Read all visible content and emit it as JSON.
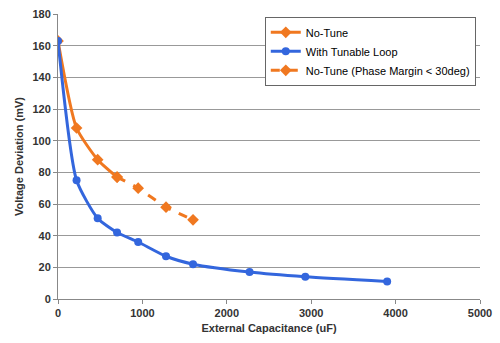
{
  "chart_data": {
    "type": "line",
    "x_label": "External Capacitance (uF)",
    "y_label": "Voltage Deviation (mV)",
    "xlim": [
      0,
      5000
    ],
    "xticks": [
      0,
      1000,
      2000,
      3000,
      4000,
      5000
    ],
    "ylim": [
      0,
      180
    ],
    "yticks": [
      0,
      20,
      40,
      60,
      80,
      100,
      120,
      140,
      160,
      180
    ],
    "grid": true,
    "legend": "upper right",
    "series": [
      {
        "name": "No-Tune",
        "color": "#f07820",
        "marker": "diamond",
        "line_style": "solid",
        "x": [
          0,
          220,
          470,
          700
        ],
        "values": [
          163,
          108,
          88,
          77
        ]
      },
      {
        "name": "With Tunable Loop",
        "color": "#3366dd",
        "marker": "circle",
        "line_style": "solid",
        "x": [
          0,
          220,
          470,
          700,
          950,
          1280,
          1600,
          2270,
          2930,
          3900
        ],
        "values": [
          163,
          75,
          51,
          42,
          36,
          27,
          22,
          17,
          14,
          11
        ]
      },
      {
        "name": "No-Tune (Phase Margin < 30deg)",
        "color": "#f07820",
        "marker": "diamond",
        "line_style": "dash",
        "x": [
          700,
          950,
          1280,
          1600
        ],
        "values": [
          77,
          70,
          58,
          50
        ]
      }
    ]
  }
}
